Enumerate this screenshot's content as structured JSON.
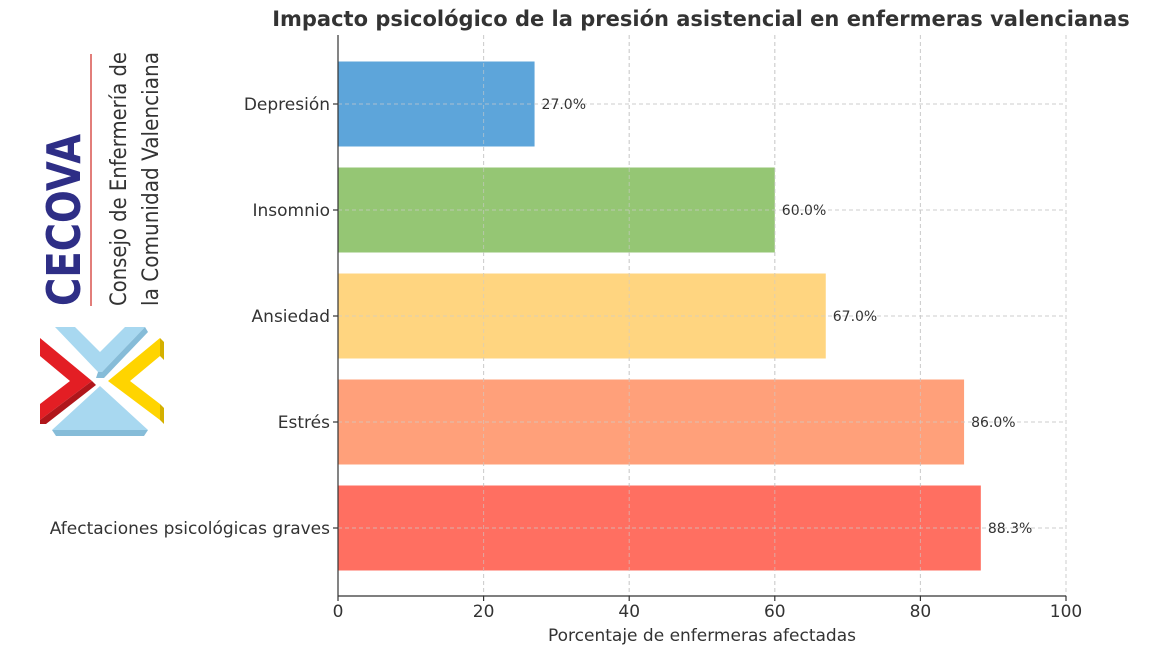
{
  "chart_data": {
    "type": "bar",
    "orientation": "horizontal",
    "title": "Impacto psicológico de la presión asistencial en enfermeras valencianas",
    "xlabel": "Porcentaje de enfermeras afectadas",
    "ylabel": "",
    "xlim": [
      0,
      100
    ],
    "xticks": [
      0,
      20,
      40,
      60,
      80,
      100
    ],
    "grid": true,
    "categories": [
      "Depresión",
      "Insomnio",
      "Ansiedad",
      "Estrés",
      "Afectaciones psicológicas graves"
    ],
    "values": [
      27.0,
      60.0,
      67.0,
      86.0,
      88.3
    ],
    "data_labels": [
      "27.0%",
      "60.0%",
      "67.0%",
      "86.0%",
      "88.3%"
    ],
    "colors": [
      "#5DA5DA",
      "#95C674",
      "#FFD580",
      "#FFA07A",
      "#FF6F61"
    ]
  },
  "logo": {
    "acronym": "CECOVA",
    "line1": "Consejo de Enfermería de",
    "line2": "la Comunidad Valenciana",
    "colors": {
      "acronym": "#2E2E86",
      "rule": "#D9534F",
      "text": "#333333",
      "red": "#E31E24",
      "blue": "#A8D8F0",
      "yellow": "#FFD400"
    }
  }
}
